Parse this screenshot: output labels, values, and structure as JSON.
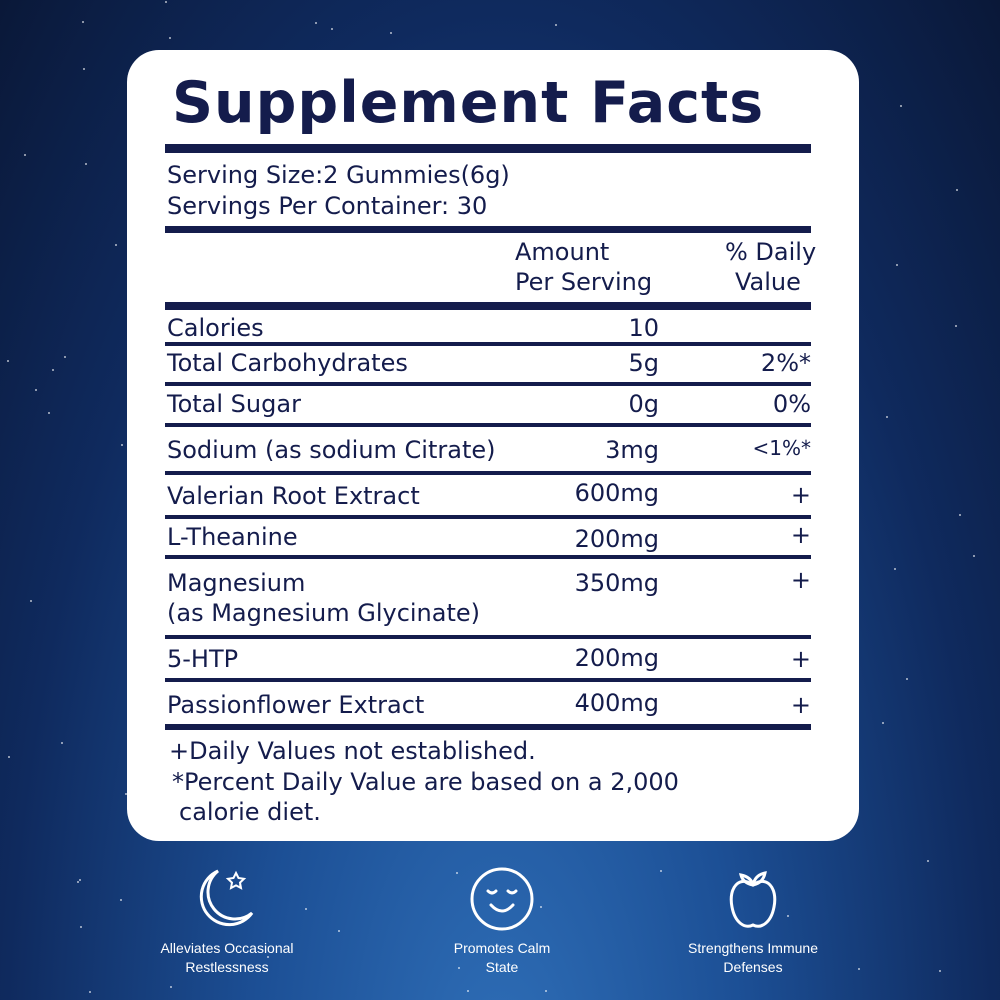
{
  "title": "Supplement Facts",
  "serving_size": "Serving Size:2 Gummies(6g)",
  "servings_per_container": "Servings Per Container: 30",
  "headers": {
    "amount_1": "Amount",
    "amount_2": "Per Serving",
    "dv_1": "% Daily",
    "dv_2": "Value"
  },
  "rows": [
    {
      "name": "Calories",
      "amount": "10",
      "dv": ""
    },
    {
      "name": "Total Carbohydrates",
      "amount": "5g",
      "dv": "2%*"
    },
    {
      "name": "Total Sugar",
      "amount": "0g",
      "dv": "0%"
    },
    {
      "name": "Sodium (as sodium Citrate)",
      "amount": "3mg",
      "dv": "<1%*"
    },
    {
      "name": "Valerian Root Extract",
      "amount": "600mg",
      "dv": "+"
    },
    {
      "name": "L-Theanine",
      "amount": "200mg",
      "dv": "+"
    },
    {
      "name": "Magnesium",
      "name2": "(as Magnesium Glycinate)",
      "amount": "350mg",
      "dv": "+"
    },
    {
      "name": "5-HTP",
      "amount": "200mg",
      "dv": "+"
    },
    {
      "name": "Passionflower Extract",
      "amount": "400mg",
      "dv": "+"
    }
  ],
  "footnotes": [
    "+Daily Values not established.",
    "*Percent Daily Value are based on a 2,000",
    "calorie diet."
  ],
  "features": [
    {
      "icon": "moon-star-icon",
      "line1": "Alleviates Occasional",
      "line2": "Restlessness"
    },
    {
      "icon": "calm-face-icon",
      "line1": "Promotes Calm",
      "line2": "State"
    },
    {
      "icon": "apple-icon",
      "line1": "Strengthens Immune",
      "line2": "Defenses"
    }
  ],
  "colors": {
    "ink": "#141c4c",
    "card": "#ffffff",
    "background": "#1c4f95"
  }
}
